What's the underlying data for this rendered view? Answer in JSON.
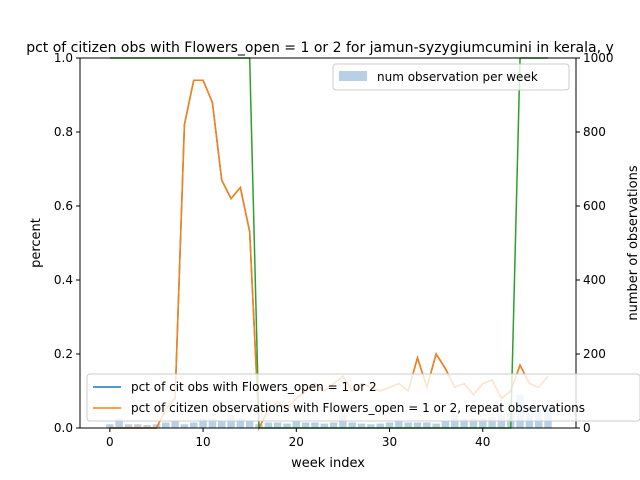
{
  "chart_data": {
    "type": "line",
    "title": "pct of citizen obs with Flowers_open = 1 or 2 for jamun-syzygiumcumini in kerala, y",
    "xlabel": "week index",
    "ylabel": "percent",
    "y2label": "number of observations",
    "xlim": [
      -3.2,
      50
    ],
    "ylim": [
      0,
      1
    ],
    "y2lim": [
      0,
      1000
    ],
    "xticks": [
      "0",
      "10",
      "20",
      "30",
      "40"
    ],
    "yticks": [
      "0.0",
      "0.2",
      "0.4",
      "0.6",
      "0.8",
      "1.0"
    ],
    "y2ticks": [
      "0",
      "200",
      "400",
      "600",
      "800",
      "1000"
    ],
    "x": [
      0,
      1,
      2,
      3,
      4,
      5,
      6,
      7,
      8,
      9,
      10,
      11,
      12,
      13,
      14,
      15,
      16,
      17,
      18,
      19,
      20,
      21,
      22,
      23,
      24,
      25,
      26,
      27,
      28,
      29,
      30,
      31,
      32,
      33,
      34,
      35,
      36,
      37,
      38,
      39,
      40,
      41,
      42,
      43,
      44,
      45,
      46,
      47
    ],
    "series": [
      {
        "name": "pct of cit obs with Flowers_open = 1 or 2",
        "color": "#1f77b4",
        "values": [
          0.0,
          0.0,
          0.0,
          0.0,
          0.0,
          0.0,
          0.05,
          0.08,
          0.82,
          0.94,
          0.94,
          0.88,
          0.67,
          0.62,
          0.65,
          0.53,
          0.0,
          0.05,
          0.07,
          0.05,
          0.08,
          0.1,
          0.12,
          0.1,
          0.12,
          0.14,
          0.1,
          0.12,
          0.11,
          0.1,
          0.11,
          0.12,
          0.1,
          0.19,
          0.11,
          0.2,
          0.16,
          0.11,
          0.12,
          0.09,
          0.12,
          0.13,
          0.08,
          0.1,
          0.17,
          0.12,
          0.11,
          0.14
        ]
      },
      {
        "name": "pct of citizen observations with Flowers_open = 1 or 2, repeat observations",
        "color": "#ff7f0e",
        "values": [
          0.0,
          0.0,
          0.0,
          0.0,
          0.0,
          0.0,
          0.05,
          0.08,
          0.82,
          0.94,
          0.94,
          0.88,
          0.67,
          0.62,
          0.65,
          0.53,
          0.0,
          0.05,
          0.07,
          0.05,
          0.08,
          0.1,
          0.12,
          0.1,
          0.12,
          0.14,
          0.1,
          0.12,
          0.11,
          0.1,
          0.11,
          0.12,
          0.1,
          0.19,
          0.11,
          0.2,
          0.16,
          0.11,
          0.12,
          0.09,
          0.12,
          0.13,
          0.08,
          0.1,
          0.17,
          0.12,
          0.11,
          0.14
        ]
      },
      {
        "name": "",
        "color": "#2ca02c",
        "values": [
          1,
          1,
          1,
          1,
          1,
          1,
          1,
          1,
          1,
          1,
          1,
          1,
          1,
          1,
          1,
          1,
          0,
          0,
          0,
          0,
          0,
          0,
          0,
          0,
          0,
          0,
          0,
          0,
          0,
          0,
          0,
          0,
          0,
          0,
          0,
          0,
          0,
          0,
          0,
          0,
          0,
          0,
          0,
          0,
          1,
          1,
          1,
          1
        ]
      }
    ],
    "bars": {
      "name": "num observation per week",
      "axis": "right",
      "color": "#b7d0e6",
      "values": [
        10,
        25,
        10,
        10,
        8,
        10,
        15,
        20,
        10,
        15,
        25,
        25,
        20,
        35,
        25,
        20,
        10,
        15,
        15,
        12,
        20,
        15,
        15,
        12,
        15,
        40,
        15,
        12,
        10,
        12,
        15,
        20,
        15,
        15,
        15,
        12,
        20,
        40,
        25,
        25,
        25,
        30,
        35,
        40,
        90,
        60,
        50,
        55
      ]
    },
    "legend_top": "top-right",
    "legend_bottom": "lower-left"
  }
}
